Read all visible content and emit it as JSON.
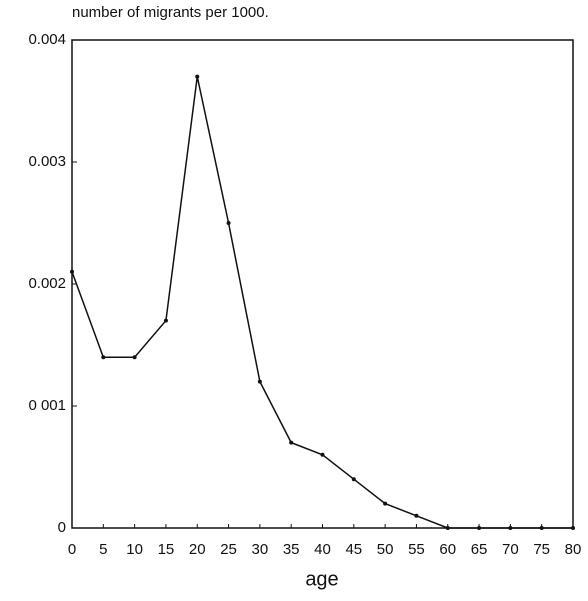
{
  "chart_data": {
    "type": "line",
    "title": "number of migrants per 1000.",
    "x_label": "age",
    "x": [
      0,
      5,
      10,
      15,
      20,
      25,
      30,
      35,
      40,
      45,
      50,
      55,
      60,
      65,
      70,
      75,
      80
    ],
    "series": [
      {
        "color": "#111111",
        "values": [
          0.0021,
          0.0014,
          0.0014,
          0.0017,
          0.0037,
          0.0025,
          0.0012,
          0.0007,
          0.0006,
          0.0004,
          0.0002,
          0.0001,
          0,
          0,
          0,
          0,
          0
        ]
      }
    ],
    "xlim": [
      0,
      80
    ],
    "xticks": [
      0,
      5,
      10,
      15,
      20,
      25,
      30,
      35,
      40,
      45,
      50,
      55,
      60,
      65,
      70,
      75,
      80
    ],
    "ylim": [
      0,
      0.004
    ],
    "yticks": [
      0,
      {
        "value": 0.001,
        "label": "0 001"
      },
      0.002,
      0.003,
      0.004
    ]
  }
}
